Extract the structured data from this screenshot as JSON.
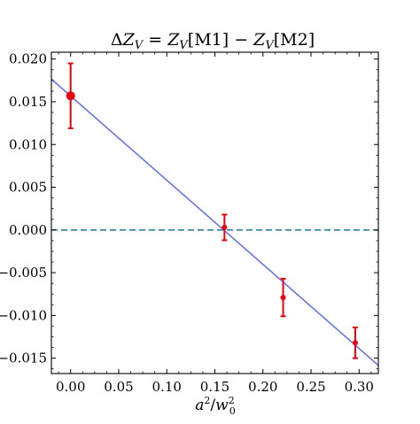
{
  "chart_data": {
    "type": "scatter",
    "title": "ΔZ_V = Z_V[M1] − Z_V[M2]",
    "title_parts": [
      "Δ",
      "Z",
      "V",
      " = ",
      "Z",
      "V",
      "[M1] − ",
      "Z",
      "V",
      "[M2]"
    ],
    "xlabel": "a²/w₀²",
    "xlabel_parts": [
      "a",
      "2",
      "/",
      "w",
      "2",
      "0"
    ],
    "ylabel": "",
    "xlim": [
      -0.02,
      0.32
    ],
    "ylim": [
      -0.0168,
      0.0208
    ],
    "x_ticks": [
      0.0,
      0.05,
      0.1,
      0.15,
      0.2,
      0.25,
      0.3
    ],
    "x_tick_labels": [
      "0.00",
      "0.05",
      "0.10",
      "0.15",
      "0.20",
      "0.25",
      "0.30"
    ],
    "y_ticks": [
      0.02,
      0.015,
      0.01,
      0.005,
      0.0,
      -0.005,
      -0.01,
      -0.015
    ],
    "y_tick_labels": [
      "0.020",
      "0.015",
      "0.010",
      "0.005",
      "0.000",
      "−0.005",
      "−0.010",
      "−0.015"
    ],
    "grid": false,
    "series": [
      {
        "type": "errorbar",
        "color": "#e8000b",
        "points": [
          {
            "x": 0.0,
            "y": 0.0157,
            "yerr": 0.0038,
            "highlight": true
          },
          {
            "x": 0.16,
            "y": 0.0003,
            "yerr": 0.0015,
            "highlight": false
          },
          {
            "x": 0.221,
            "y": -0.0079,
            "yerr": 0.0022,
            "highlight": false
          },
          {
            "x": 0.296,
            "y": -0.0132,
            "yerr": 0.0018,
            "highlight": false
          }
        ]
      },
      {
        "type": "fit_line",
        "color": "#6b74e6",
        "x": [
          -0.02,
          0.32
        ],
        "y": [
          0.01765,
          -0.01585
        ]
      },
      {
        "type": "reference_line",
        "color": "#2f7fa6",
        "style": "dashed",
        "y": 0.0
      }
    ]
  }
}
